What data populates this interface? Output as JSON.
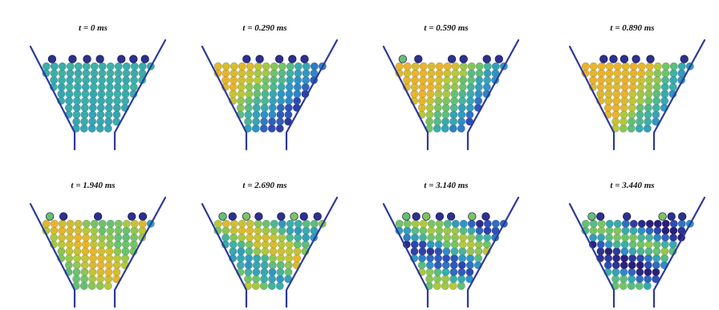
{
  "figure": {
    "panels": [
      {
        "title": "t = 0 ms",
        "time_ms": 0
      },
      {
        "title": "t = 0.290 ms",
        "time_ms": 0.29
      },
      {
        "title": "t = 0.590 ms",
        "time_ms": 0.59
      },
      {
        "title": "t = 0.890 ms",
        "time_ms": 0.89
      },
      {
        "title": "t = 1.940 ms",
        "time_ms": 1.94
      },
      {
        "title": "t = 2.690 ms",
        "time_ms": 2.69
      },
      {
        "title": "t = 3.140 ms",
        "time_ms": 3.14
      },
      {
        "title": "t = 3.440 ms",
        "time_ms": 3.44
      }
    ],
    "colors": {
      "wall": "#2b3a9a",
      "colormap": [
        "#2a1f7a",
        "#2f4fb8",
        "#2f8fc8",
        "#3ab0a8",
        "#6cc36a",
        "#b7c93a",
        "#e8b52c",
        "#f2a62a"
      ]
    }
  }
}
